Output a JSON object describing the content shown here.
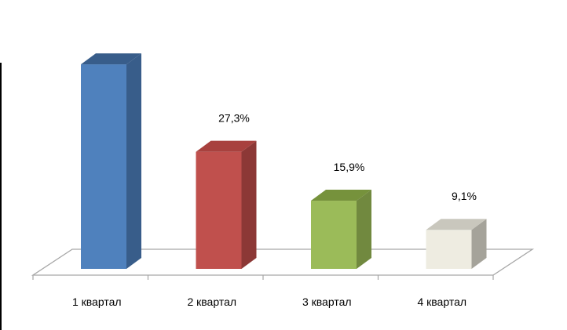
{
  "chart_data": {
    "type": "bar",
    "style": "3d-column",
    "categories": [
      "1 квартал",
      "2 квартал",
      "3 квартал",
      "4 квартал"
    ],
    "values": [
      47.7,
      27.3,
      15.9,
      9.1
    ],
    "data_labels": [
      "",
      "27,3%",
      "15,9%",
      "9,1%"
    ],
    "ylim": [
      0,
      50
    ],
    "grid": false,
    "legend": "none",
    "colors": [
      {
        "front": "#4f81bd",
        "side": "#385d8a",
        "top": "#385d8a"
      },
      {
        "front": "#c0504d",
        "side": "#8c3836",
        "top": "#a8413e"
      },
      {
        "front": "#9bbb59",
        "side": "#71893f",
        "top": "#76923c"
      },
      {
        "front": "#eeece1",
        "side": "#a5a39a",
        "top": "#c9c7bd"
      }
    ]
  }
}
